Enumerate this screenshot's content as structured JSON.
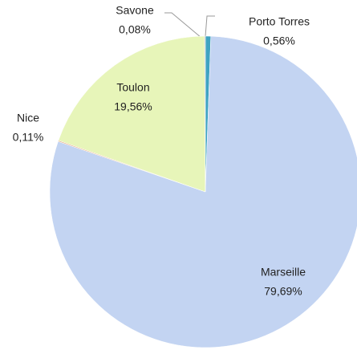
{
  "chart_data": {
    "type": "pie",
    "categories": [
      "Porto Torres",
      "Marseille",
      "Nice",
      "Toulon",
      "Savone"
    ],
    "values": [
      0.56,
      79.69,
      0.11,
      19.56,
      0.08
    ],
    "value_labels": [
      "0,56%",
      "79,69%",
      "0,11%",
      "19,56%",
      "0,08%"
    ],
    "colors": [
      "#3fa3c2",
      "#c3d4f2",
      "#e8b38a",
      "#e7f5b9",
      "#a8a8a8"
    ]
  }
}
